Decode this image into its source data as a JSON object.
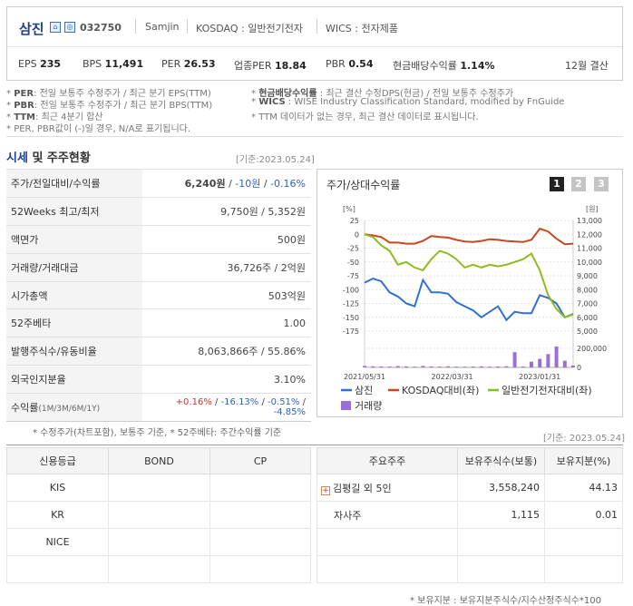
{
  "header": {
    "company": "삼진",
    "code": "032750",
    "eng_name": "Samjin",
    "market": "KOSDAQ : 일반전기전자",
    "wics": "WICS : 전자제품",
    "metrics": [
      {
        "label": "EPS",
        "value": "235"
      },
      {
        "label": "BPS",
        "value": "11,491"
      },
      {
        "label": "PER",
        "value": "26.53"
      },
      {
        "label": "업종PER",
        "value": "18.84"
      },
      {
        "label": "PBR",
        "value": "0.54"
      },
      {
        "label": "현금배당수익률",
        "value": "1.14%"
      }
    ],
    "fiscal": "12월 결산"
  },
  "notes": {
    "left": [
      {
        "key": "PER",
        "text": ": 전일 보통주 수정주가 / 최근 분기 EPS(TTM)"
      },
      {
        "key": "PBR",
        "text": ": 전일 보통주 수정주가 / 최근 분기 BPS(TTM)"
      },
      {
        "key": "TTM",
        "text": ": 최근 4분기 합산"
      },
      {
        "key": "",
        "text": "PER, PBR값이 (-)일 경우, N/A로 표기됩니다."
      }
    ],
    "right": [
      {
        "key": "현금배당수익률",
        "text": " : 최근 결산 수정DPS(현금) / 전일 보통주 수정주가"
      },
      {
        "key": "WICS",
        "text": " : WISE Industry Classification Standard, modified by FnGuide"
      },
      {
        "key": "",
        "text": "TTM 데이터가 없는 경우, 최근 결산 데이터로 표시됩니다."
      }
    ]
  },
  "market_section": {
    "title_a": "시세",
    "title_b": " 및 주주현황",
    "date": "[기준:2023.05.24]",
    "rows": [
      {
        "label": "주가/전일대비/수익률",
        "v1": "6,240원",
        "v2": "-10원",
        "v3": "-0.16%"
      },
      {
        "label": "52Weeks 최고/최저",
        "value": "9,750원 / 5,352원"
      },
      {
        "label": "액면가",
        "value": "500원"
      },
      {
        "label": "거래량/거래대금",
        "value": "36,726주 / 2억원"
      },
      {
        "label": "시가총액",
        "value": "503억원"
      },
      {
        "label": "52주베타",
        "value": "1.00"
      },
      {
        "label": "발행주식수/유동비율",
        "value": "8,063,866주 / 55.86%"
      },
      {
        "label": "외국인지분율",
        "value": "3.10%"
      },
      {
        "label": "수익률",
        "sublabel": "(1M/3M/6M/1Y)",
        "r1": "+0.16%",
        "r2": "-16.13%",
        "r3": "-0.51%",
        "r4": "-4.85%"
      }
    ],
    "footnote": "* 수정주가(차트포함), 보통주 기준, * 52주베타: 주간수익률 기준"
  },
  "chart_panel": {
    "title": "주가/상대수익률",
    "pages": [
      "1",
      "2",
      "3"
    ],
    "active_page": "1"
  },
  "chart_data": {
    "type": "line",
    "left_axis_unit": "[%]",
    "right_axis_unit": "[원]",
    "left_ticks": [
      "25",
      "0",
      "-25",
      "-50",
      "-75",
      "-100",
      "-125",
      "-150",
      "-175"
    ],
    "right_ticks": [
      "13,000",
      "12,000",
      "11,000",
      "10,000",
      "9,000",
      "8,000",
      "7,000",
      "6,000",
      "5,000"
    ],
    "volume_ticks": [
      "200,000",
      "0"
    ],
    "x_ticks": [
      "2021/05/31",
      "2022/03/31",
      "2023/01/31"
    ],
    "ylim_left": [
      -175,
      25
    ],
    "ylim_right": [
      5000,
      13000
    ],
    "series": [
      {
        "name": "삼진",
        "color": "#2f6fd6",
        "axis": "right",
        "values": [
          8500,
          8800,
          8600,
          7800,
          7500,
          7000,
          6800,
          8700,
          7800,
          7800,
          7700,
          7100,
          6800,
          6500,
          6000,
          6400,
          6800,
          5800,
          6400,
          6300,
          6300,
          7600,
          7400,
          7000,
          6000,
          6240
        ]
      },
      {
        "name": "KOSDAQ대비(좌)",
        "color": "#c8461e",
        "axis": "left",
        "values": [
          0,
          -2,
          -5,
          -15,
          -15,
          -17,
          -17,
          -12,
          -3,
          -5,
          -6,
          -10,
          -13,
          -14,
          -12,
          -9,
          -10,
          -12,
          -13,
          -14,
          -10,
          10,
          5,
          -8,
          -18,
          -17
        ]
      },
      {
        "name": "일반전기전자대비(좌)",
        "color": "#8cbc1e",
        "axis": "left",
        "values": [
          0,
          -5,
          -20,
          -30,
          -55,
          -50,
          -60,
          -65,
          -45,
          -30,
          -35,
          -45,
          -60,
          -55,
          -60,
          -55,
          -58,
          -55,
          -50,
          -45,
          -35,
          -65,
          -110,
          -135,
          -150,
          -145
        ]
      }
    ],
    "volume": {
      "name": "거래량",
      "color": "#9b6fd6",
      "values": [
        15000,
        12000,
        10000,
        9000,
        14000,
        11000,
        8000,
        16000,
        10000,
        9000,
        12000,
        8000,
        7000,
        9000,
        11000,
        8000,
        10000,
        12000,
        160000,
        9000,
        60000,
        90000,
        140000,
        240000,
        70000,
        20000
      ]
    }
  },
  "credit": {
    "headers": [
      "신용등급",
      "BOND",
      "CP"
    ],
    "rows": [
      [
        "KIS",
        "",
        ""
      ],
      [
        "KR",
        "",
        ""
      ],
      [
        "NICE",
        "",
        ""
      ],
      [
        "",
        "",
        ""
      ]
    ]
  },
  "holders": {
    "date": "[기준: 2023.05.24]",
    "headers": [
      "주요주주",
      "보유주식수(보통)",
      "보유지분(%)"
    ],
    "rows": [
      {
        "name": "김평길 외 5인",
        "shares": "3,558,240",
        "pct": "44.13",
        "expand": "+"
      },
      {
        "name": "자사주",
        "shares": "1,115",
        "pct": "0.01",
        "expand": ""
      },
      {
        "name": "",
        "shares": "",
        "pct": "",
        "expand": ""
      },
      {
        "name": "",
        "shares": "",
        "pct": "",
        "expand": ""
      }
    ],
    "footnote": "* 보유지분 : 보유지분주식수/지수산정주식수*100"
  }
}
